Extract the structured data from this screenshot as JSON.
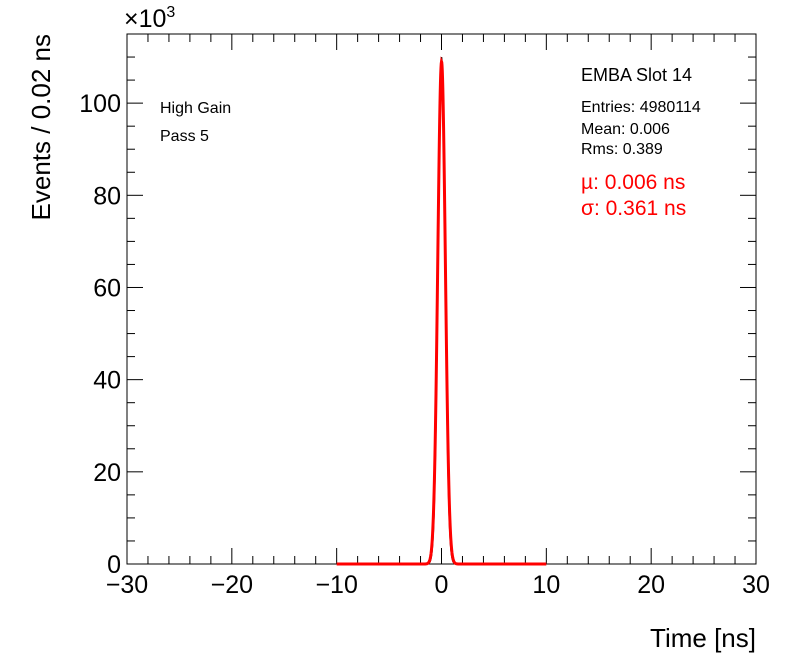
{
  "chart_data": {
    "type": "line",
    "title": "EMBA Slot 14",
    "xlabel": "Time [ns]",
    "ylabel": "Events / 0.02 ns",
    "xlim": [
      -30,
      30
    ],
    "ylim": [
      0,
      115
    ],
    "y_multiplier": "×10",
    "y_multiplier_exp": "3",
    "x_ticks": [
      -30,
      -20,
      -10,
      0,
      10,
      20,
      30
    ],
    "x_tick_labels": [
      "−30",
      "−20",
      "−10",
      "0",
      "10",
      "20",
      "30"
    ],
    "y_ticks": [
      0,
      20,
      40,
      60,
      80,
      100
    ],
    "y_tick_labels": [
      "0",
      "20",
      "40",
      "60",
      "80",
      "100"
    ],
    "labels": {
      "gain": "High Gain",
      "pass": "Pass 5"
    },
    "stats": {
      "entries": "Entries: 4980114",
      "mean": "Mean: 0.006",
      "rms": "Rms: 0.389"
    },
    "fit": {
      "mu_text": "µ: 0.006 ns",
      "sigma_text": "σ: 0.361 ns",
      "mu": 0.006,
      "sigma": 0.361,
      "peak": 109,
      "range": [
        -10,
        10
      ],
      "color": "#ff0000"
    },
    "histogram": {
      "peak": 110,
      "color": "#000000"
    },
    "grid": false
  }
}
